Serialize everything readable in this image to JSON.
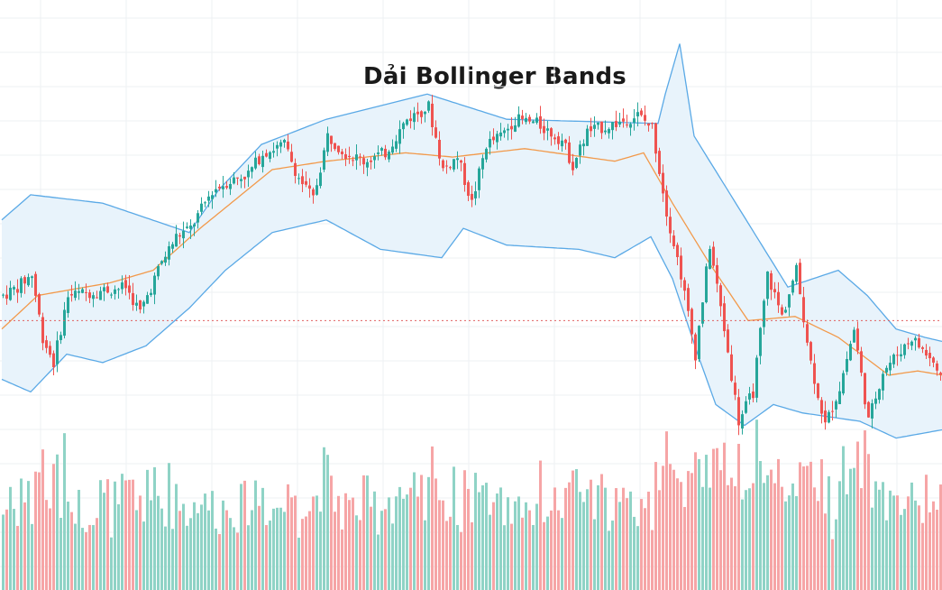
{
  "title": "Dải Bollinger Bands",
  "chart_data": {
    "type": "candlestick",
    "title": "Dải Bollinger Bands",
    "xlabel": "",
    "ylabel": "",
    "grid": true,
    "legend": "none",
    "price_range": [
      0,
      100
    ],
    "reference_line": 44,
    "colors": {
      "up": "#26a69a",
      "down": "#ef5350",
      "volume_up": "#8fd3c6",
      "volume_down": "#f6a5a6",
      "band_line": "#5aa9e6",
      "band_fill": "#e8f3fb",
      "middle_line": "#f2994a",
      "grid": "#eef0f3",
      "reference": "#e06060"
    },
    "band_keypoints": {
      "upper": [
        [
          0,
          68
        ],
        [
          8,
          74
        ],
        [
          28,
          72
        ],
        [
          52,
          65
        ],
        [
          60,
          75
        ],
        [
          72,
          86
        ],
        [
          90,
          92
        ],
        [
          118,
          98
        ],
        [
          140,
          92
        ],
        [
          182,
          91
        ],
        [
          184,
          98
        ],
        [
          188,
          110
        ],
        [
          192,
          88
        ],
        [
          205,
          70
        ],
        [
          218,
          52
        ],
        [
          232,
          56
        ],
        [
          240,
          50
        ],
        [
          248,
          42
        ],
        [
          256,
          40
        ],
        [
          261,
          39
        ]
      ],
      "middle": [
        [
          0,
          42
        ],
        [
          10,
          50
        ],
        [
          30,
          53
        ],
        [
          42,
          56
        ],
        [
          55,
          66
        ],
        [
          75,
          80
        ],
        [
          90,
          82
        ],
        [
          112,
          84
        ],
        [
          125,
          83
        ],
        [
          145,
          85
        ],
        [
          170,
          82
        ],
        [
          178,
          84
        ],
        [
          186,
          72
        ],
        [
          196,
          58
        ],
        [
          207,
          44
        ],
        [
          220,
          45
        ],
        [
          232,
          40
        ],
        [
          246,
          31
        ],
        [
          254,
          32
        ],
        [
          261,
          31
        ]
      ],
      "lower": [
        [
          0,
          30
        ],
        [
          8,
          27
        ],
        [
          18,
          36
        ],
        [
          28,
          34
        ],
        [
          40,
          38
        ],
        [
          52,
          47
        ],
        [
          62,
          56
        ],
        [
          75,
          65
        ],
        [
          90,
          68
        ],
        [
          105,
          61
        ],
        [
          122,
          59
        ],
        [
          128,
          66
        ],
        [
          140,
          62
        ],
        [
          160,
          61
        ],
        [
          170,
          59
        ],
        [
          180,
          64
        ],
        [
          186,
          54
        ],
        [
          193,
          36
        ],
        [
          198,
          24
        ],
        [
          206,
          19
        ],
        [
          214,
          24
        ],
        [
          222,
          22
        ],
        [
          238,
          20
        ],
        [
          248,
          16
        ],
        [
          261,
          18
        ]
      ]
    },
    "close_keypoints": [
      [
        0,
        50
      ],
      [
        4,
        52
      ],
      [
        8,
        55
      ],
      [
        11,
        40
      ],
      [
        14,
        34
      ],
      [
        18,
        50
      ],
      [
        26,
        51
      ],
      [
        34,
        52
      ],
      [
        38,
        46
      ],
      [
        44,
        58
      ],
      [
        48,
        64
      ],
      [
        52,
        66
      ],
      [
        58,
        75
      ],
      [
        62,
        77
      ],
      [
        68,
        79
      ],
      [
        72,
        84
      ],
      [
        78,
        86
      ],
      [
        82,
        78
      ],
      [
        86,
        73
      ],
      [
        90,
        88
      ],
      [
        95,
        84
      ],
      [
        100,
        82
      ],
      [
        106,
        84
      ],
      [
        112,
        92
      ],
      [
        118,
        95
      ],
      [
        122,
        80
      ],
      [
        126,
        83
      ],
      [
        130,
        72
      ],
      [
        134,
        86
      ],
      [
        138,
        88
      ],
      [
        142,
        92
      ],
      [
        148,
        91
      ],
      [
        155,
        87
      ],
      [
        158,
        81
      ],
      [
        162,
        89
      ],
      [
        170,
        91
      ],
      [
        176,
        93
      ],
      [
        180,
        90
      ],
      [
        184,
        70
      ],
      [
        188,
        55
      ],
      [
        192,
        36
      ],
      [
        196,
        62
      ],
      [
        200,
        42
      ],
      [
        204,
        20
      ],
      [
        208,
        27
      ],
      [
        212,
        55
      ],
      [
        216,
        45
      ],
      [
        220,
        56
      ],
      [
        224,
        34
      ],
      [
        228,
        19
      ],
      [
        232,
        28
      ],
      [
        236,
        42
      ],
      [
        240,
        20
      ],
      [
        244,
        32
      ],
      [
        248,
        36
      ],
      [
        252,
        40
      ],
      [
        258,
        34
      ],
      [
        261,
        28
      ]
    ]
  }
}
